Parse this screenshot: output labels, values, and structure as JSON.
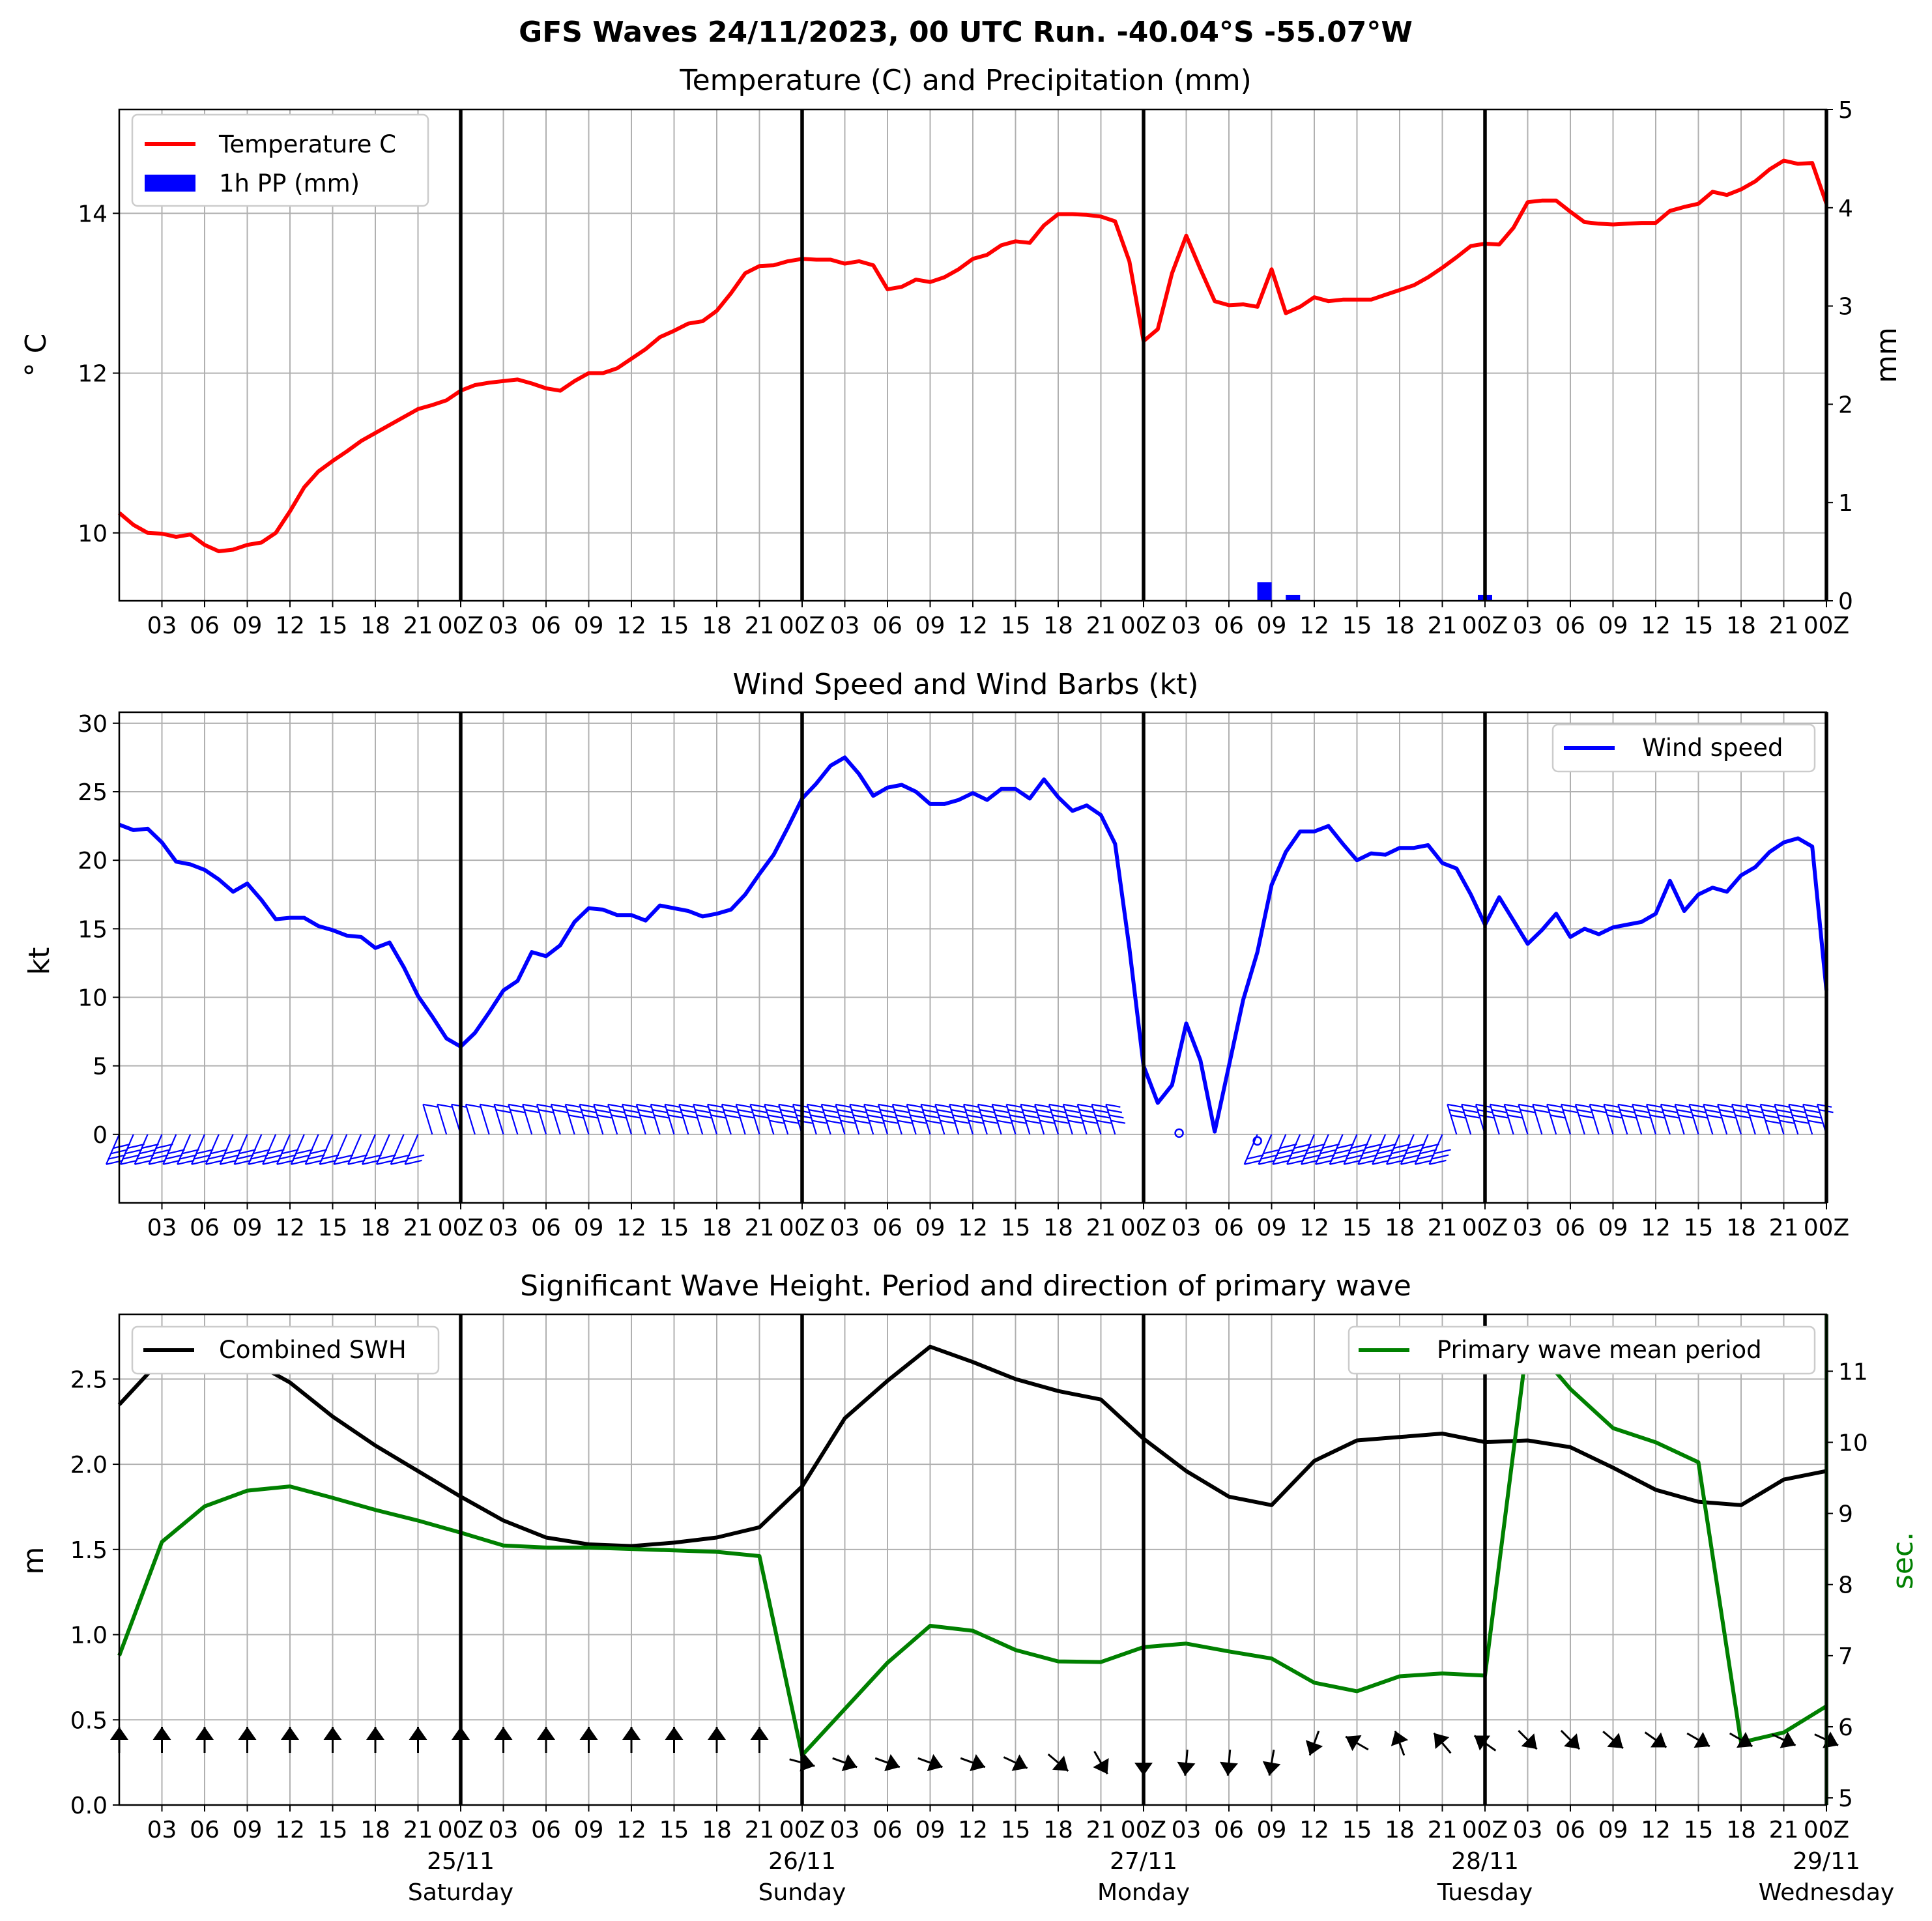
{
  "suptitle": "GFS Waves 24/11/2023, 00 UTC Run. -40.04°S -55.07°W",
  "colors": {
    "temperature": "#ff0000",
    "precip": "#0000ff",
    "wind": "#0000ff",
    "swh": "#000000",
    "period": "#008000",
    "grid": "#b0b0b0"
  },
  "x_tick_labels": [
    "03",
    "06",
    "09",
    "12",
    "15",
    "18",
    "21",
    "00Z",
    "03",
    "06",
    "09",
    "12",
    "15",
    "18",
    "21",
    "00Z",
    "03",
    "06",
    "09",
    "12",
    "15",
    "18",
    "21",
    "00Z",
    "03",
    "06",
    "09",
    "12",
    "15",
    "18",
    "21",
    "00Z",
    "03",
    "06",
    "09",
    "12",
    "15",
    "18",
    "21",
    "00Z"
  ],
  "date_labels": [
    "25/11",
    "26/11",
    "27/11",
    "28/11",
    "29/11"
  ],
  "day_labels": [
    "Saturday",
    "Sunday",
    "Monday",
    "Tuesday",
    "Wednesday"
  ],
  "chart_data": [
    {
      "type": "line",
      "title": "Temperature (C) and Precipitation (mm)",
      "ylabel": "° C",
      "ylabel_right": "mm",
      "x_unit": "hours since 24/11/2023 00Z",
      "ylim": [
        9.15,
        15.3
      ],
      "ylim_right": [
        0,
        5
      ],
      "yticks": [
        10,
        12,
        14
      ],
      "yticks_right": [
        0,
        1,
        2,
        3,
        4,
        5
      ],
      "xlim": [
        0,
        120
      ],
      "legend": "top-left",
      "series": [
        {
          "name": "Temperature C",
          "x": [
            0,
            1,
            2,
            3,
            4,
            5,
            6,
            7,
            8,
            9,
            10,
            11,
            12,
            13,
            14,
            15,
            16,
            17,
            18,
            19,
            20,
            21,
            22,
            23,
            24,
            25,
            26,
            27,
            28,
            29,
            30,
            31,
            32,
            33,
            34,
            35,
            36,
            37,
            38,
            39,
            40,
            41,
            42,
            43,
            44,
            45,
            46,
            47,
            48,
            49,
            50,
            51,
            52,
            53,
            54,
            55,
            56,
            57,
            58,
            59,
            60,
            61,
            62,
            63,
            64,
            65,
            66,
            67,
            68,
            69,
            70,
            71,
            72,
            73,
            74,
            75,
            76,
            77,
            78,
            79,
            80,
            81,
            82,
            83,
            84,
            85,
            86,
            87,
            88,
            89,
            90,
            91,
            92,
            93,
            94,
            95,
            96,
            97,
            98,
            99,
            100,
            101,
            102,
            103,
            104,
            105,
            106,
            107,
            108,
            109,
            110,
            111,
            112,
            113,
            114,
            115,
            116,
            117,
            118,
            119,
            120
          ],
          "values": [
            10.25,
            10.1,
            10.0,
            9.99,
            9.95,
            9.98,
            9.85,
            9.77,
            9.79,
            9.85,
            9.88,
            10.0,
            10.27,
            10.57,
            10.77,
            10.9,
            11.02,
            11.15,
            11.25,
            11.35,
            11.45,
            11.55,
            11.6,
            11.66,
            11.78,
            11.85,
            11.88,
            11.9,
            11.92,
            11.87,
            11.81,
            11.78,
            11.9,
            12.0,
            12.0,
            12.06,
            12.18,
            12.3,
            12.45,
            12.53,
            12.62,
            12.65,
            12.78,
            13.0,
            13.25,
            13.34,
            13.35,
            13.4,
            13.43,
            13.42,
            13.42,
            13.37,
            13.4,
            13.35,
            13.05,
            13.08,
            13.17,
            13.14,
            13.2,
            13.3,
            13.43,
            13.48,
            13.6,
            13.65,
            13.63,
            13.85,
            13.99,
            13.99,
            13.98,
            13.96,
            13.9,
            13.4,
            12.4,
            12.55,
            13.25,
            13.72,
            13.3,
            12.9,
            12.85,
            12.86,
            12.83,
            13.3,
            12.75,
            12.83,
            12.95,
            12.9,
            12.92,
            12.92,
            12.92,
            12.98,
            13.04,
            13.1,
            13.2,
            13.32,
            13.45,
            13.59,
            13.62,
            13.61,
            13.82,
            14.14,
            14.16,
            14.16,
            14.02,
            13.89,
            13.87,
            13.86,
            13.87,
            13.88,
            13.88,
            14.03,
            14.08,
            14.12,
            14.27,
            14.23,
            14.3,
            14.4,
            14.55,
            14.66,
            14.62,
            14.63,
            14.12
          ]
        },
        {
          "name": "1h PP (mm)",
          "type": "bar",
          "x": [
            80.5,
            82.5,
            96
          ],
          "values": [
            0.19,
            0.06,
            0.06
          ]
        }
      ]
    },
    {
      "type": "line",
      "title": "Wind Speed and Wind Barbs (kt)",
      "ylabel": "kt",
      "ylim": [
        -5,
        30.8
      ],
      "yticks": [
        0,
        5,
        10,
        15,
        20,
        25,
        30
      ],
      "xlim": [
        0,
        120
      ],
      "legend": "top-right",
      "series": [
        {
          "name": "Wind speed",
          "x": [
            0,
            1,
            2,
            3,
            4,
            5,
            6,
            7,
            8,
            9,
            10,
            11,
            12,
            13,
            14,
            15,
            16,
            17,
            18,
            19,
            20,
            21,
            22,
            23,
            24,
            25,
            26,
            27,
            28,
            29,
            30,
            31,
            32,
            33,
            34,
            35,
            36,
            37,
            38,
            39,
            40,
            41,
            42,
            43,
            44,
            45,
            46,
            47,
            48,
            49,
            50,
            51,
            52,
            53,
            54,
            55,
            56,
            57,
            58,
            59,
            60,
            61,
            62,
            63,
            64,
            65,
            66,
            67,
            68,
            69,
            70,
            71,
            72,
            73,
            74,
            75,
            76,
            77,
            78,
            79,
            80,
            81,
            82,
            83,
            84,
            85,
            86,
            87,
            88,
            89,
            90,
            91,
            92,
            93,
            94,
            95,
            96,
            97,
            98,
            99,
            100,
            101,
            102,
            103,
            104,
            105,
            106,
            107,
            108,
            109,
            110,
            111,
            112,
            113,
            114,
            115,
            116,
            117,
            118,
            119,
            120
          ],
          "values": [
            22.6,
            22.2,
            22.3,
            21.3,
            19.9,
            19.7,
            19.3,
            18.6,
            17.7,
            18.3,
            17.1,
            15.7,
            15.8,
            15.8,
            15.2,
            14.9,
            14.5,
            14.4,
            13.6,
            14.0,
            12.2,
            10.1,
            8.6,
            7.0,
            6.4,
            7.4,
            8.9,
            10.5,
            11.2,
            13.3,
            13.0,
            13.8,
            15.5,
            16.5,
            16.4,
            16.0,
            16.0,
            15.6,
            16.7,
            16.5,
            16.3,
            15.9,
            16.1,
            16.4,
            17.5,
            19.0,
            20.4,
            22.4,
            24.5,
            25.6,
            26.9,
            27.5,
            26.3,
            24.7,
            25.3,
            25.5,
            25.0,
            24.1,
            24.1,
            24.4,
            24.9,
            24.4,
            25.2,
            25.2,
            24.5,
            25.9,
            24.6,
            23.6,
            24.0,
            23.3,
            21.2,
            13.6,
            5.0,
            2.3,
            3.6,
            8.1,
            5.4,
            0.2,
            5.0,
            9.8,
            13.3,
            18.2,
            20.6,
            22.1,
            22.1,
            22.5,
            21.2,
            20.0,
            20.5,
            20.4,
            20.9,
            20.9,
            21.1,
            19.8,
            19.4,
            17.5,
            15.3,
            17.3,
            15.6,
            13.9,
            14.9,
            16.1,
            14.4,
            15.0,
            14.6,
            15.1,
            15.3,
            15.5,
            16.1,
            18.5,
            16.3,
            17.5,
            18.0,
            17.7,
            18.9,
            19.5,
            20.6,
            21.3,
            21.6,
            21.0,
            10.5
          ]
        }
      ],
      "wind_barbs": "blue barbs every hour along y=0"
    },
    {
      "type": "line",
      "title": "Significant Wave Height. Period and direction of primary wave",
      "ylabel": "m",
      "ylabel_right": "sec.",
      "ylim": [
        0,
        2.88
      ],
      "ylim_right": [
        4.9,
        11.8
      ],
      "yticks": [
        0.0,
        0.5,
        1.0,
        1.5,
        2.0,
        2.5
      ],
      "yticks_right": [
        5,
        6,
        7,
        8,
        9,
        10,
        11
      ],
      "xlim": [
        0,
        120
      ],
      "series": [
        {
          "name": "Combined SWH",
          "x": [
            0,
            3,
            6,
            9,
            12,
            15,
            18,
            21,
            24,
            27,
            30,
            33,
            36,
            39,
            42,
            45,
            48,
            51,
            54,
            57,
            60,
            63,
            66,
            69,
            72,
            75,
            78,
            81,
            84,
            87,
            90,
            93,
            96,
            99,
            102,
            105,
            108,
            111,
            114,
            117,
            120
          ],
          "values": [
            2.35,
            2.62,
            2.69,
            2.62,
            2.48,
            2.28,
            2.11,
            1.96,
            1.81,
            1.67,
            1.57,
            1.53,
            1.52,
            1.54,
            1.57,
            1.63,
            1.87,
            2.27,
            2.49,
            2.69,
            2.6,
            2.5,
            2.43,
            2.38,
            2.15,
            1.96,
            1.81,
            1.76,
            2.02,
            2.14,
            2.16,
            2.18,
            2.13,
            2.14,
            2.1,
            1.98,
            1.85,
            1.78,
            1.76,
            1.91,
            1.96
          ],
          "legend": "top-left"
        },
        {
          "name": "Primary wave mean period",
          "axis": "right",
          "x": [
            0,
            3,
            6,
            9,
            12,
            15,
            18,
            21,
            24,
            27,
            30,
            33,
            36,
            39,
            42,
            45,
            48,
            51,
            54,
            57,
            60,
            63,
            66,
            69,
            72,
            75,
            78,
            81,
            84,
            87,
            90,
            93,
            96,
            99,
            102,
            105,
            108,
            111,
            114,
            117,
            120
          ],
          "values": [
            7.0,
            8.6,
            9.1,
            9.32,
            9.38,
            9.22,
            9.05,
            8.9,
            8.73,
            8.55,
            8.52,
            8.52,
            8.5,
            8.48,
            8.46,
            8.4,
            5.6,
            6.25,
            6.9,
            7.42,
            7.35,
            7.08,
            6.92,
            6.91,
            7.12,
            7.17,
            7.06,
            6.96,
            6.62,
            6.5,
            6.71,
            6.75,
            6.72,
            11.45,
            10.75,
            10.2,
            10.0,
            9.72,
            5.78,
            5.92,
            6.29
          ],
          "legend": "top-right"
        }
      ],
      "wave_direction_arrows_deg": [
        0,
        0,
        0,
        0,
        0,
        0,
        0,
        0,
        0,
        0,
        0,
        0,
        0,
        0,
        0,
        0,
        105,
        110,
        110,
        110,
        110,
        115,
        130,
        150,
        180,
        185,
        185,
        190,
        200,
        300,
        340,
        320,
        305,
        135,
        135,
        130,
        125,
        120,
        120,
        115,
        115
      ]
    }
  ]
}
